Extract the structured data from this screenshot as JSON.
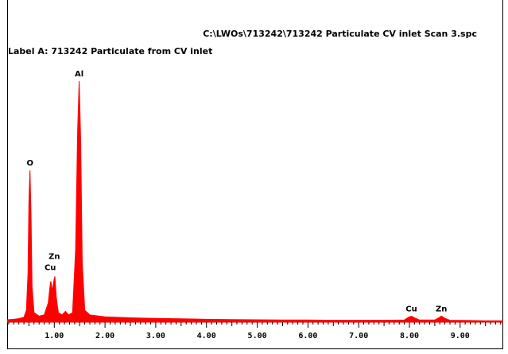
{
  "chart_data": {
    "type": "area",
    "title": "C:\\LWOs\\713242\\713242 Particulate CV inlet Scan 3.spc",
    "subtitle": "Label A: 713242 Particulate from CV inlet",
    "xlabel": "",
    "ylabel": "",
    "xlim": [
      0.07,
      9.85
    ],
    "ylim": [
      0,
      1.0
    ],
    "x_ticks": [
      "1.00",
      "2.00",
      "3.00",
      "4.00",
      "5.00",
      "6.00",
      "7.00",
      "8.00",
      "9.00"
    ],
    "grid": false,
    "series_color": "#ff0000",
    "peaks": [
      {
        "element": "O",
        "energy": 0.52,
        "height": 0.63
      },
      {
        "element": "Zn",
        "energy": 1.01,
        "height": 0.19
      },
      {
        "element": "Cu",
        "energy": 0.93,
        "height": 0.17
      },
      {
        "element": "Al",
        "energy": 1.49,
        "height": 1.0
      },
      {
        "element": "Cu",
        "energy": 8.04,
        "height": 0.025
      },
      {
        "element": "Zn",
        "energy": 8.63,
        "height": 0.025
      }
    ],
    "spectrum": [
      [
        0.07,
        0.01
      ],
      [
        0.2,
        0.012
      ],
      [
        0.3,
        0.015
      ],
      [
        0.4,
        0.02
      ],
      [
        0.45,
        0.05
      ],
      [
        0.48,
        0.2
      ],
      [
        0.5,
        0.5
      ],
      [
        0.52,
        0.63
      ],
      [
        0.54,
        0.45
      ],
      [
        0.56,
        0.15
      ],
      [
        0.6,
        0.04
      ],
      [
        0.7,
        0.025
      ],
      [
        0.8,
        0.03
      ],
      [
        0.88,
        0.08
      ],
      [
        0.91,
        0.14
      ],
      [
        0.93,
        0.17
      ],
      [
        0.96,
        0.13
      ],
      [
        0.99,
        0.17
      ],
      [
        1.01,
        0.19
      ],
      [
        1.04,
        0.1
      ],
      [
        1.08,
        0.04
      ],
      [
        1.15,
        0.03
      ],
      [
        1.22,
        0.045
      ],
      [
        1.28,
        0.03
      ],
      [
        1.36,
        0.04
      ],
      [
        1.42,
        0.3
      ],
      [
        1.46,
        0.8
      ],
      [
        1.49,
        1.0
      ],
      [
        1.52,
        0.75
      ],
      [
        1.55,
        0.25
      ],
      [
        1.6,
        0.05
      ],
      [
        1.7,
        0.03
      ],
      [
        2.0,
        0.022
      ],
      [
        2.5,
        0.018
      ],
      [
        3.0,
        0.016
      ],
      [
        3.5,
        0.014
      ],
      [
        4.0,
        0.012
      ],
      [
        4.5,
        0.011
      ],
      [
        5.0,
        0.01
      ],
      [
        5.5,
        0.009
      ],
      [
        6.0,
        0.009
      ],
      [
        6.5,
        0.008
      ],
      [
        7.0,
        0.008
      ],
      [
        7.5,
        0.008
      ],
      [
        7.9,
        0.009
      ],
      [
        7.98,
        0.02
      ],
      [
        8.04,
        0.025
      ],
      [
        8.1,
        0.018
      ],
      [
        8.2,
        0.009
      ],
      [
        8.5,
        0.009
      ],
      [
        8.58,
        0.018
      ],
      [
        8.63,
        0.025
      ],
      [
        8.7,
        0.016
      ],
      [
        8.8,
        0.008
      ],
      [
        9.2,
        0.007
      ],
      [
        9.5,
        0.006
      ],
      [
        9.85,
        0.006
      ]
    ]
  }
}
